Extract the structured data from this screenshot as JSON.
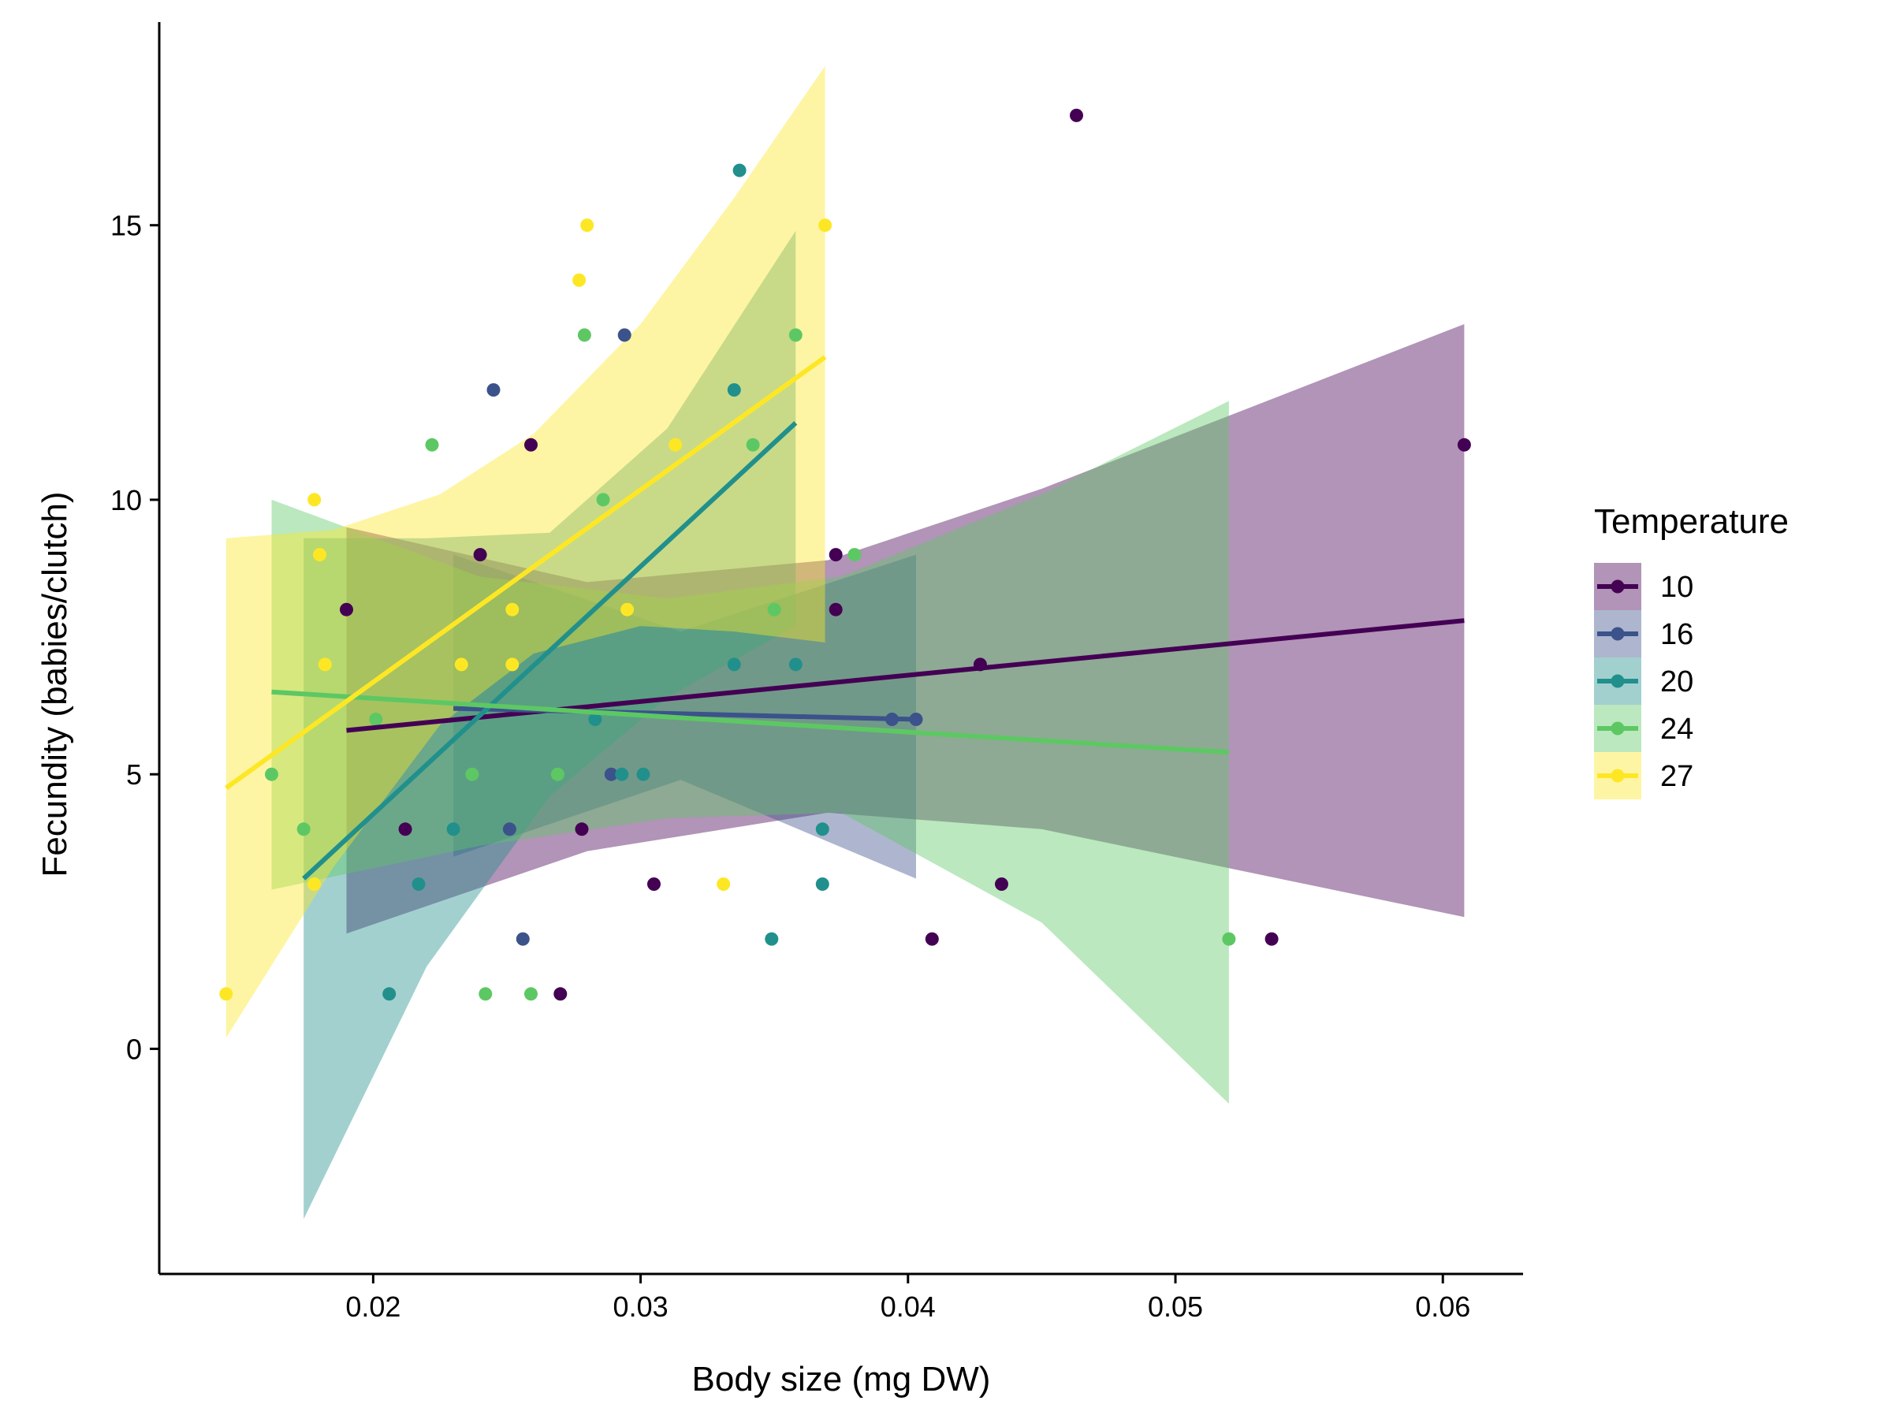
{
  "chart_data": {
    "type": "scatter",
    "title": "",
    "xlabel": "Body size (mg DW)",
    "ylabel": "Fecundity (babies/clutch)",
    "xlim": [
      0.012,
      0.063
    ],
    "ylim": [
      -4.1,
      18.7
    ],
    "x_ticks": [
      0.02,
      0.03,
      0.04,
      0.05,
      0.06
    ],
    "x_tick_labels": [
      "0.02",
      "0.03",
      "0.04",
      "0.05",
      "0.06"
    ],
    "y_ticks": [
      0,
      5,
      10,
      15
    ],
    "y_tick_labels": [
      "0",
      "5",
      "10",
      "15"
    ],
    "grid": false,
    "legend": {
      "title": "Temperature",
      "position": "right"
    },
    "series": [
      {
        "name": "10",
        "color": "#440154",
        "points": [
          [
            0.0463,
            17
          ],
          [
            0.0608,
            11
          ],
          [
            0.0305,
            3
          ],
          [
            0.0536,
            2
          ],
          [
            0.027,
            1
          ],
          [
            0.0278,
            4
          ],
          [
            0.0409,
            2
          ],
          [
            0.0435,
            3
          ],
          [
            0.0427,
            7
          ],
          [
            0.0373,
            9
          ],
          [
            0.0373,
            8
          ],
          [
            0.0259,
            11
          ],
          [
            0.024,
            9
          ],
          [
            0.0212,
            4
          ],
          [
            0.019,
            8
          ]
        ],
        "fit": {
          "x": [
            0.019,
            0.0608
          ],
          "y": [
            5.8,
            7.8
          ]
        },
        "ci": {
          "x": [
            0.019,
            0.028,
            0.037,
            0.045,
            0.0608
          ],
          "lower": [
            2.1,
            3.6,
            4.3,
            4.0,
            2.4
          ],
          "upper": [
            9.5,
            8.5,
            8.9,
            10.2,
            13.2
          ]
        }
      },
      {
        "name": "16",
        "color": "#3B528B",
        "points": [
          [
            0.0245,
            12
          ],
          [
            0.0256,
            2
          ],
          [
            0.0251,
            4
          ],
          [
            0.0294,
            13
          ],
          [
            0.0403,
            6
          ],
          [
            0.0394,
            6
          ],
          [
            0.0289,
            5
          ]
        ],
        "fit": {
          "x": [
            0.023,
            0.0403
          ],
          "y": [
            6.2,
            6.0
          ]
        },
        "ci": {
          "x": [
            0.023,
            0.0315,
            0.0403
          ],
          "lower": [
            3.5,
            4.9,
            3.1
          ],
          "upper": [
            9.0,
            7.6,
            9.0
          ]
        }
      },
      {
        "name": "20",
        "color": "#21908C",
        "points": [
          [
            0.0337,
            16
          ],
          [
            0.0349,
            2
          ],
          [
            0.0206,
            1
          ],
          [
            0.0217,
            3
          ],
          [
            0.023,
            4
          ],
          [
            0.0368,
            4
          ],
          [
            0.0368,
            3
          ],
          [
            0.0358,
            7
          ],
          [
            0.0283,
            6
          ],
          [
            0.0335,
            7
          ],
          [
            0.0293,
            5
          ],
          [
            0.0301,
            5
          ],
          [
            0.0335,
            12
          ]
        ],
        "fit": {
          "x": [
            0.0174,
            0.0358
          ],
          "y": [
            3.1,
            11.4
          ]
        },
        "ci": {
          "x": [
            0.0174,
            0.022,
            0.0266,
            0.031,
            0.0358
          ],
          "lower": [
            -3.1,
            1.5,
            4.6,
            6.4,
            7.7
          ],
          "upper": [
            9.3,
            9.3,
            9.4,
            11.3,
            14.9
          ]
        }
      },
      {
        "name": "24",
        "color": "#5DC863",
        "points": [
          [
            0.0162,
            5
          ],
          [
            0.0174,
            4
          ],
          [
            0.0222,
            11
          ],
          [
            0.0237,
            5
          ],
          [
            0.0242,
            1
          ],
          [
            0.0259,
            1
          ],
          [
            0.0269,
            5
          ],
          [
            0.0279,
            13
          ],
          [
            0.0286,
            10
          ],
          [
            0.0342,
            11
          ],
          [
            0.0358,
            13
          ],
          [
            0.038,
            9
          ],
          [
            0.052,
            2
          ],
          [
            0.0201,
            6
          ],
          [
            0.035,
            8
          ]
        ],
        "fit": {
          "x": [
            0.0162,
            0.052
          ],
          "y": [
            6.5,
            5.4
          ]
        },
        "ci": {
          "x": [
            0.0162,
            0.024,
            0.031,
            0.0375,
            0.045,
            0.052
          ],
          "lower": [
            2.9,
            3.7,
            4.2,
            4.3,
            2.3,
            -1.0
          ],
          "upper": [
            10.0,
            8.6,
            8.2,
            8.6,
            10.1,
            11.8
          ]
        }
      },
      {
        "name": "27",
        "color": "#FDE725",
        "points": [
          [
            0.0145,
            1
          ],
          [
            0.0178,
            10
          ],
          [
            0.0178,
            3
          ],
          [
            0.018,
            9
          ],
          [
            0.0182,
            7
          ],
          [
            0.0277,
            14
          ],
          [
            0.028,
            15
          ],
          [
            0.0313,
            11
          ],
          [
            0.0331,
            3
          ],
          [
            0.0369,
            15
          ],
          [
            0.0295,
            8
          ],
          [
            0.0252,
            8
          ],
          [
            0.0252,
            7
          ],
          [
            0.0233,
            7
          ]
        ],
        "fit": {
          "x": [
            0.0145,
            0.0369
          ],
          "y": [
            4.75,
            12.6
          ]
        },
        "ci": {
          "x": [
            0.0145,
            0.0185,
            0.0225,
            0.026,
            0.03,
            0.0335,
            0.0369
          ],
          "lower": [
            0.2,
            3.3,
            5.9,
            7.2,
            7.7,
            7.6,
            7.4
          ],
          "upper": [
            9.3,
            9.45,
            10.1,
            11.2,
            13.2,
            15.5,
            17.9
          ]
        }
      }
    ]
  }
}
